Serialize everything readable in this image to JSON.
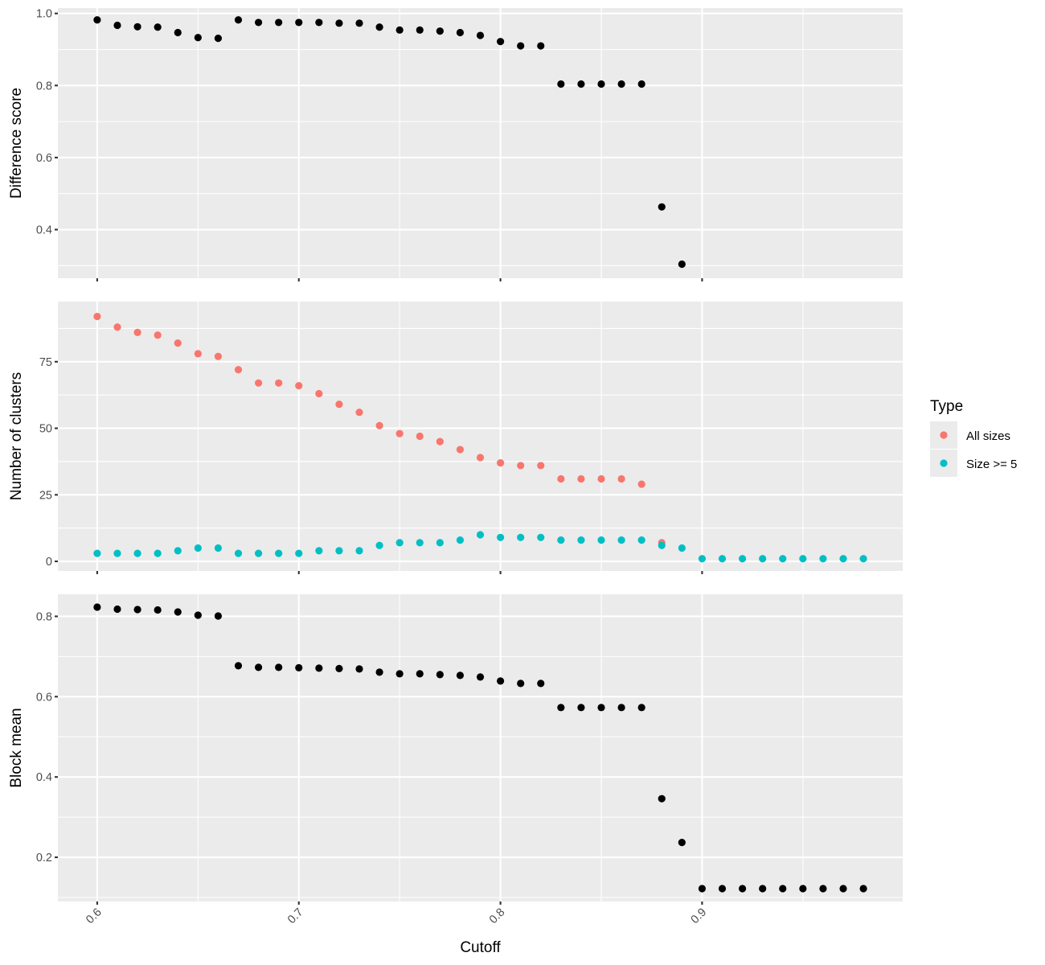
{
  "chart_data": {
    "type": "scatter",
    "xlabel": "Cutoff",
    "xlim": [
      0.5805,
      0.9995
    ],
    "x_ticks": [
      "0.6",
      "0.7",
      "0.8",
      "0.9"
    ],
    "x_tick_values": [
      0.6,
      0.7,
      0.8,
      0.9
    ],
    "grid": true,
    "legend": {
      "title": "Type",
      "position": "right",
      "entries": [
        {
          "label": "All sizes",
          "color": "#F8766D"
        },
        {
          "label": "Size >= 5",
          "color": "#00BFC4"
        }
      ]
    },
    "panels": [
      {
        "name": "difference-score",
        "ylabel": "Difference score",
        "ylim": [
          0.265,
          1.015
        ],
        "y_ticks": [
          "0.4",
          "0.6",
          "0.8",
          "1.0"
        ],
        "y_tick_values": [
          0.4,
          0.6,
          0.8,
          1.0
        ],
        "series": [
          {
            "color": "#000000",
            "x": [
              0.6,
              0.61,
              0.62,
              0.63,
              0.64,
              0.65,
              0.66,
              0.67,
              0.68,
              0.69,
              0.7,
              0.71,
              0.72,
              0.73,
              0.74,
              0.75,
              0.76,
              0.77,
              0.78,
              0.79,
              0.8,
              0.81,
              0.82,
              0.83,
              0.84,
              0.85,
              0.86,
              0.87,
              0.88,
              0.89
            ],
            "y": [
              0.982,
              0.967,
              0.963,
              0.962,
              0.947,
              0.933,
              0.931,
              0.982,
              0.975,
              0.975,
              0.975,
              0.975,
              0.973,
              0.973,
              0.962,
              0.954,
              0.954,
              0.951,
              0.947,
              0.939,
              0.922,
              0.91,
              0.91,
              0.804,
              0.804,
              0.804,
              0.804,
              0.804,
              0.463,
              0.304
            ]
          }
        ]
      },
      {
        "name": "number-of-clusters",
        "ylabel": "Number of clusters",
        "ylim": [
          -3.6,
          97.6
        ],
        "y_ticks": [
          "0",
          "25",
          "50",
          "75"
        ],
        "y_tick_values": [
          0,
          25,
          50,
          75
        ],
        "series": [
          {
            "name": "All sizes",
            "color": "#F8766D",
            "x": [
              0.6,
              0.61,
              0.62,
              0.63,
              0.64,
              0.65,
              0.66,
              0.67,
              0.68,
              0.69,
              0.7,
              0.71,
              0.72,
              0.73,
              0.74,
              0.75,
              0.76,
              0.77,
              0.78,
              0.79,
              0.8,
              0.81,
              0.82,
              0.83,
              0.84,
              0.85,
              0.86,
              0.87,
              0.88
            ],
            "y": [
              92,
              88,
              86,
              85,
              82,
              78,
              77,
              72,
              67,
              67,
              66,
              63,
              59,
              56,
              51,
              48,
              47,
              45,
              42,
              39,
              37,
              36,
              36,
              31,
              31,
              31,
              31,
              29,
              7
            ]
          },
          {
            "name": "Size >= 5",
            "color": "#00BFC4",
            "x": [
              0.6,
              0.61,
              0.62,
              0.63,
              0.64,
              0.65,
              0.66,
              0.67,
              0.68,
              0.69,
              0.7,
              0.71,
              0.72,
              0.73,
              0.74,
              0.75,
              0.76,
              0.77,
              0.78,
              0.79,
              0.8,
              0.81,
              0.82,
              0.83,
              0.84,
              0.85,
              0.86,
              0.87,
              0.88,
              0.89,
              0.9,
              0.91,
              0.92,
              0.93,
              0.94,
              0.95,
              0.96,
              0.97,
              0.98
            ],
            "y": [
              3,
              3,
              3,
              3,
              4,
              5,
              5,
              3,
              3,
              3,
              3,
              4,
              4,
              4,
              6,
              7,
              7,
              7,
              8,
              10,
              9,
              9,
              9,
              8,
              8,
              8,
              8,
              8,
              6,
              5,
              1,
              1,
              1,
              1,
              1,
              1,
              1,
              1,
              1
            ]
          }
        ]
      },
      {
        "name": "block-mean",
        "ylabel": "Block mean",
        "ylim": [
          0.09,
          0.855
        ],
        "y_ticks": [
          "0.2",
          "0.4",
          "0.6",
          "0.8"
        ],
        "y_tick_values": [
          0.2,
          0.4,
          0.6,
          0.8
        ],
        "series": [
          {
            "color": "#000000",
            "x": [
              0.6,
              0.61,
              0.62,
              0.63,
              0.64,
              0.65,
              0.66,
              0.67,
              0.68,
              0.69,
              0.7,
              0.71,
              0.72,
              0.73,
              0.74,
              0.75,
              0.76,
              0.77,
              0.78,
              0.79,
              0.8,
              0.81,
              0.82,
              0.83,
              0.84,
              0.85,
              0.86,
              0.87,
              0.88,
              0.89,
              0.9,
              0.91,
              0.92,
              0.93,
              0.94,
              0.95,
              0.96,
              0.97,
              0.98
            ],
            "y": [
              0.823,
              0.818,
              0.817,
              0.816,
              0.811,
              0.803,
              0.801,
              0.677,
              0.673,
              0.673,
              0.672,
              0.671,
              0.67,
              0.669,
              0.661,
              0.657,
              0.657,
              0.655,
              0.653,
              0.649,
              0.639,
              0.633,
              0.633,
              0.573,
              0.573,
              0.573,
              0.573,
              0.573,
              0.346,
              0.237,
              0.122,
              0.122,
              0.122,
              0.122,
              0.122,
              0.122,
              0.122,
              0.122,
              0.122
            ]
          }
        ]
      }
    ]
  }
}
